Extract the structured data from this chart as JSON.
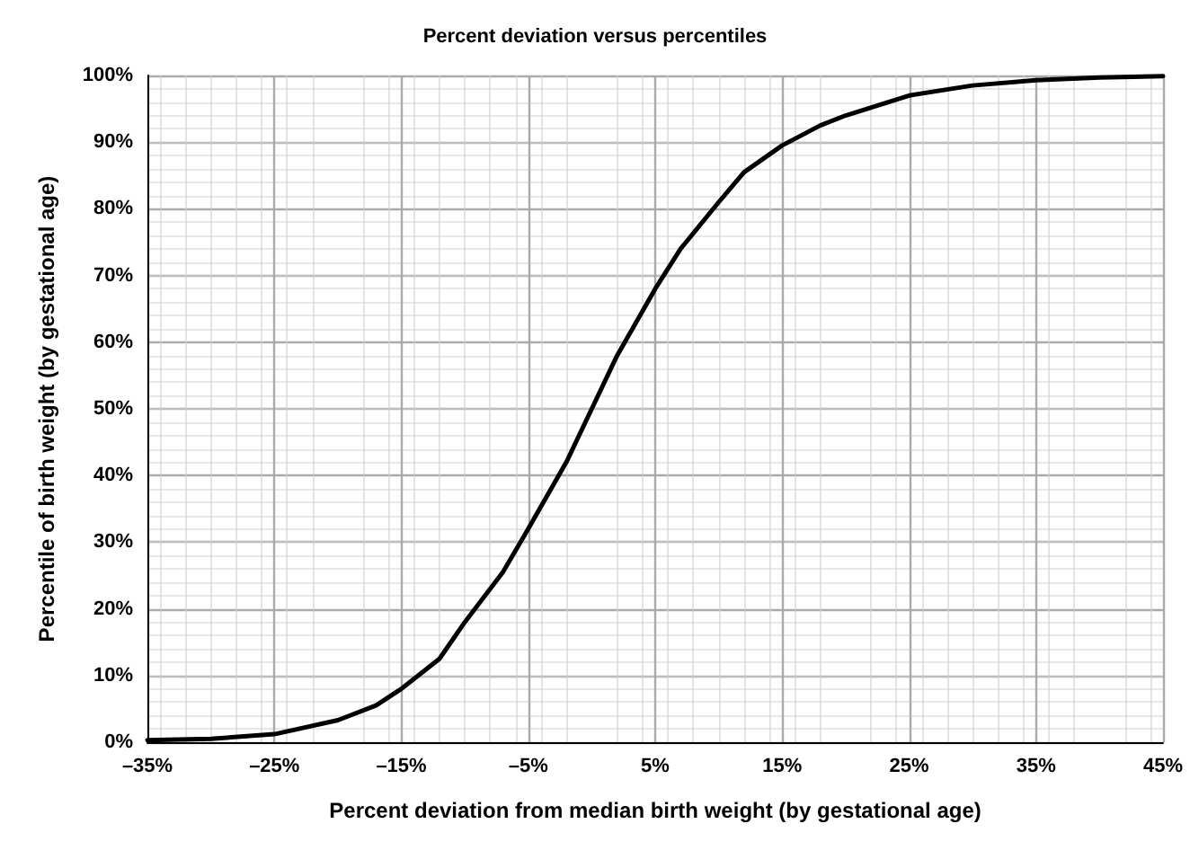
{
  "chart_data": {
    "type": "line",
    "title": "Percent deviation versus percentiles",
    "xlabel": "Percent deviation from median birth weight (by gestational age)",
    "ylabel": "Percentile of birth weight (by gestational age)",
    "x": [
      -35,
      -30,
      -25,
      -20,
      -17,
      -15,
      -12,
      -10,
      -7,
      -5,
      -2,
      0,
      2,
      5,
      7,
      10,
      12,
      15,
      18,
      20,
      25,
      30,
      35,
      40,
      45
    ],
    "series": [
      {
        "color": "#000000",
        "values": [
          0.3,
          0.5,
          1.2,
          3.3,
          5.5,
          8,
          12.5,
          18,
          25.5,
          32,
          42,
          50,
          58,
          68,
          74,
          81,
          85.5,
          89.5,
          92.5,
          94,
          97,
          98.5,
          99.3,
          99.7,
          99.9
        ]
      }
    ],
    "xlim": [
      -35,
      45
    ],
    "ylim": [
      0,
      100
    ],
    "xticks": [
      {
        "value": -35,
        "label": "–35%"
      },
      {
        "value": -25,
        "label": "–25%"
      },
      {
        "value": -15,
        "label": "–15%"
      },
      {
        "value": -5,
        "label": "–5%"
      },
      {
        "value": 5,
        "label": "5%"
      },
      {
        "value": 15,
        "label": "15%"
      },
      {
        "value": 25,
        "label": "25%"
      },
      {
        "value": 35,
        "label": "35%"
      },
      {
        "value": 45,
        "label": "45%"
      }
    ],
    "yticks": [
      {
        "value": 0,
        "label": "0%"
      },
      {
        "value": 10,
        "label": "10%"
      },
      {
        "value": 20,
        "label": "20%"
      },
      {
        "value": 30,
        "label": "30%"
      },
      {
        "value": 40,
        "label": "40%"
      },
      {
        "value": 50,
        "label": "50%"
      },
      {
        "value": 60,
        "label": "60%"
      },
      {
        "value": 70,
        "label": "70%"
      },
      {
        "value": 80,
        "label": "80%"
      },
      {
        "value": 90,
        "label": "90%"
      },
      {
        "value": 100,
        "label": "100%"
      }
    ],
    "grid": true,
    "marker": "none",
    "line_style": "solid"
  }
}
